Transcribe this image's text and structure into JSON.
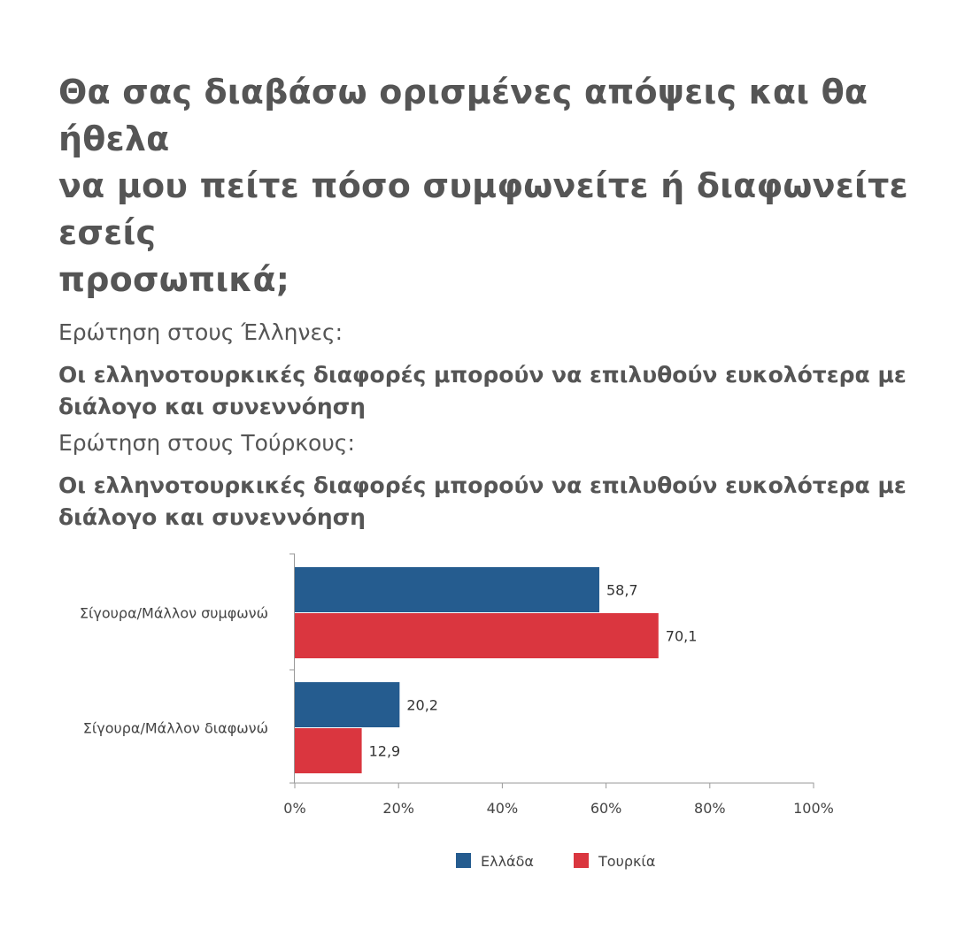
{
  "header": {
    "title_lines": [
      "Θα σας διαβάσω ορισμένες απόψεις και θα ήθελα",
      "να μου πείτε πόσο συμφωνείτε ή διαφωνείτε εσείς",
      "προσωπικά;"
    ],
    "q1_label": "Ερώτηση στους Έλληνες:",
    "q1_text_lines": [
      "Οι ελληνοτουρκικές διαφορές μπορούν να επιλυθούν ευκολότερα με",
      "διάλογο και συνεννόηση"
    ],
    "q2_label": "Ερώτηση στους Τούρκους:",
    "q2_text_lines": [
      "Οι ελληνοτουρκικές διαφορές μπορούν να επιλυθούν ευκολότερα με",
      "διάλογο και συνεννόηση"
    ]
  },
  "chart_data": {
    "type": "bar",
    "orientation": "horizontal",
    "categories": [
      "Σίγουρα/Μάλλον συμφωνώ",
      "Σίγουρα/Μάλλον διαφωνώ"
    ],
    "series": [
      {
        "name": "Ελλάδα",
        "values": [
          58.7,
          20.2
        ],
        "labels": [
          "58,7",
          "20,2"
        ],
        "color": "#255c8f"
      },
      {
        "name": "Τουρκία",
        "values": [
          70.1,
          12.9
        ],
        "labels": [
          "70,1",
          "12,9"
        ],
        "color": "#da363f"
      }
    ],
    "xlim": [
      0,
      100
    ],
    "xticks": [
      "0%",
      "20%",
      "40%",
      "60%",
      "80%",
      "100%"
    ],
    "grid": false,
    "legend": "bottom"
  }
}
